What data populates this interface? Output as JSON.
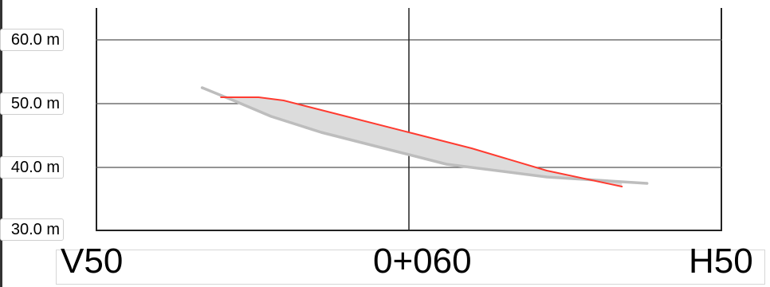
{
  "chart_data": {
    "type": "line",
    "title": "",
    "xlabel": "",
    "ylabel": "",
    "x_tick_labels": [
      "V50",
      "0+060",
      "H50"
    ],
    "y_tick_labels": [
      "60.0 m",
      "50.0 m",
      "40.0 m",
      "30.0 m"
    ],
    "x_range": [
      -50,
      50
    ],
    "ylim": [
      30,
      65
    ],
    "grid": true,
    "series": [
      {
        "color": "#ff3b30",
        "x": [
          -30,
          -24,
          -20,
          -10,
          0,
          10,
          22,
          34
        ],
        "y": [
          51,
          51,
          50.5,
          48,
          45.5,
          43,
          39.5,
          37
        ]
      },
      {
        "color": "#bdbdbd",
        "x": [
          -33,
          -28,
          -22,
          -14,
          -2,
          6,
          22,
          38
        ],
        "y": [
          52.5,
          50.5,
          48,
          45.5,
          42.5,
          40.5,
          38.5,
          37.5
        ]
      }
    ],
    "fill_between_series": {
      "color": "#dcdcdc"
    }
  }
}
